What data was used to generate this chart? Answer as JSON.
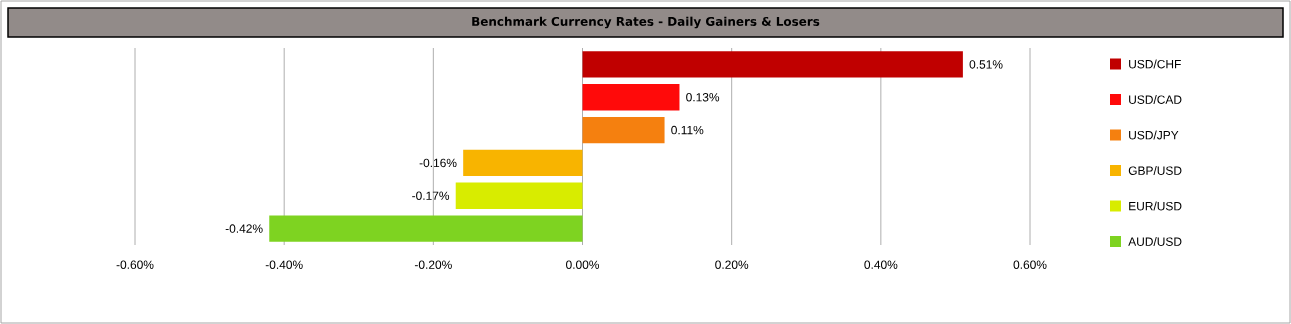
{
  "chart_data": {
    "type": "bar",
    "orientation": "horizontal",
    "title": "Benchmark Currency Rates - Daily Gainers & Losers",
    "categories": [
      null,
      null,
      null,
      null,
      null,
      null
    ],
    "series": [
      {
        "name": "USD/CHF",
        "color": "#c00000",
        "values": [
          0.51,
          null,
          null,
          null,
          null,
          null
        ],
        "value_labels": [
          "0.51%",
          null,
          null,
          null,
          null,
          null
        ]
      },
      {
        "name": "USD/CAD",
        "color": "#ff0a0a",
        "values": [
          null,
          0.13,
          null,
          null,
          null,
          null
        ],
        "value_labels": [
          null,
          "0.13%",
          null,
          null,
          null,
          null
        ]
      },
      {
        "name": "USD/JPY",
        "color": "#f5800f",
        "values": [
          null,
          null,
          0.11,
          null,
          null,
          null
        ],
        "value_labels": [
          null,
          null,
          "0.11%",
          null,
          null,
          null
        ]
      },
      {
        "name": "GBP/USD",
        "color": "#f8b400",
        "values": [
          null,
          null,
          null,
          -0.16,
          null,
          null
        ],
        "value_labels": [
          null,
          null,
          null,
          "-0.16%",
          null,
          null
        ]
      },
      {
        "name": "EUR/USD",
        "color": "#d8ec00",
        "values": [
          null,
          null,
          null,
          null,
          -0.17,
          null
        ],
        "value_labels": [
          null,
          null,
          null,
          null,
          "-0.17%",
          null
        ]
      },
      {
        "name": "AUD/USD",
        "color": "#7ed321",
        "values": [
          null,
          null,
          null,
          null,
          null,
          -0.42
        ],
        "value_labels": [
          null,
          null,
          null,
          null,
          null,
          "-0.42%"
        ]
      }
    ],
    "xlim": [
      -0.6,
      0.6
    ],
    "xticks": [
      {
        "value": -0.6,
        "label": "-0.60%"
      },
      {
        "value": -0.4,
        "label": "-0.40%"
      },
      {
        "value": -0.2,
        "label": "-0.20%"
      },
      {
        "value": 0,
        "label": "0.00%"
      },
      {
        "value": 0.2,
        "label": "0.20%"
      },
      {
        "value": 0.4,
        "label": "0.40%"
      },
      {
        "value": 0.6,
        "label": "0.60%"
      }
    ],
    "grid": "x",
    "legend": "right"
  }
}
